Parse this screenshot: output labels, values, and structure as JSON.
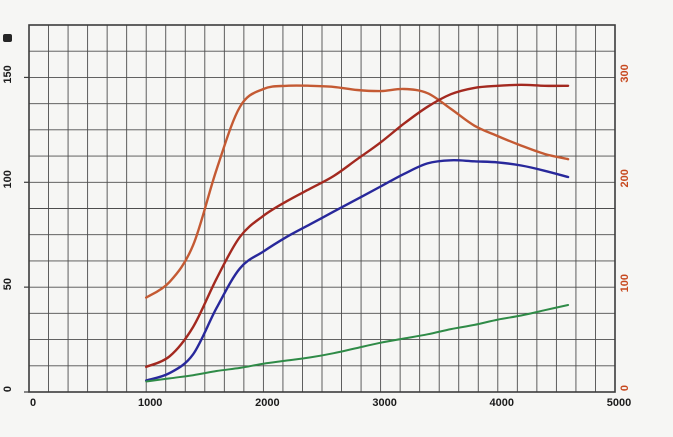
{
  "chart_data": {
    "type": "line",
    "title": "",
    "xlabel": "",
    "ylabel_left": "",
    "ylabel_right": "",
    "x_axis": {
      "range": [
        0,
        5000
      ],
      "ticks": [
        0,
        1000,
        2000,
        3000,
        4000,
        5000
      ],
      "tick_labels": [
        "0",
        "1000",
        "2000",
        "3000",
        "4000",
        "5000"
      ],
      "color": "#1b1b1b"
    },
    "left_axis": {
      "range": [
        0,
        175
      ],
      "ticks": [
        0,
        50,
        100,
        150
      ],
      "tick_labels": [
        "0",
        "50",
        "100",
        "150"
      ],
      "color": "#1b1b1b"
    },
    "right_axis": {
      "range": [
        0,
        350
      ],
      "ticks": [
        0,
        100,
        200,
        300
      ],
      "tick_labels": [
        "0",
        "100",
        "200",
        "300"
      ],
      "color": "#c7491f"
    },
    "grid": {
      "on": true,
      "x_divisions": 30,
      "y_divisions": 14,
      "color": "#4d4d4d"
    },
    "legend": "none",
    "x_rpm": [
      1000,
      1200,
      1400,
      1600,
      1800,
      2000,
      2200,
      2400,
      2600,
      2800,
      3000,
      3200,
      3400,
      3600,
      3800,
      4000,
      4200,
      4400,
      4600
    ],
    "series": [
      {
        "name": "orange-curve",
        "axis": "right",
        "color": "#c45a33",
        "stroke_width": 2.4,
        "values": [
          90,
          105,
          140,
          212,
          272,
          289,
          292,
          292,
          291,
          288,
          287,
          289,
          285,
          270,
          254,
          244,
          235,
          227,
          222
        ]
      },
      {
        "name": "red-curve",
        "axis": "left",
        "color": "#a3291f",
        "stroke_width": 2.4,
        "values": [
          12,
          17,
          31,
          54,
          74,
          84,
          91,
          97,
          103,
          111,
          119,
          128,
          136,
          142,
          145,
          146,
          146.5,
          146,
          146
        ]
      },
      {
        "name": "blue-curve",
        "axis": "left",
        "color": "#28289b",
        "stroke_width": 2.4,
        "values": [
          5.5,
          9,
          18,
          40,
          59,
          67,
          74,
          80,
          86,
          92,
          98,
          104,
          109,
          110.5,
          110,
          109.5,
          108,
          105.5,
          102.5
        ]
      },
      {
        "name": "green-line",
        "axis": "right",
        "color": "#2f8b47",
        "stroke_width": 2.0,
        "values": [
          10,
          13,
          16,
          20,
          23,
          27,
          30,
          33,
          37,
          42,
          47,
          51,
          55,
          60,
          64,
          69,
          73,
          78,
          83
        ]
      }
    ]
  },
  "ui": {
    "corner_mark": ""
  }
}
